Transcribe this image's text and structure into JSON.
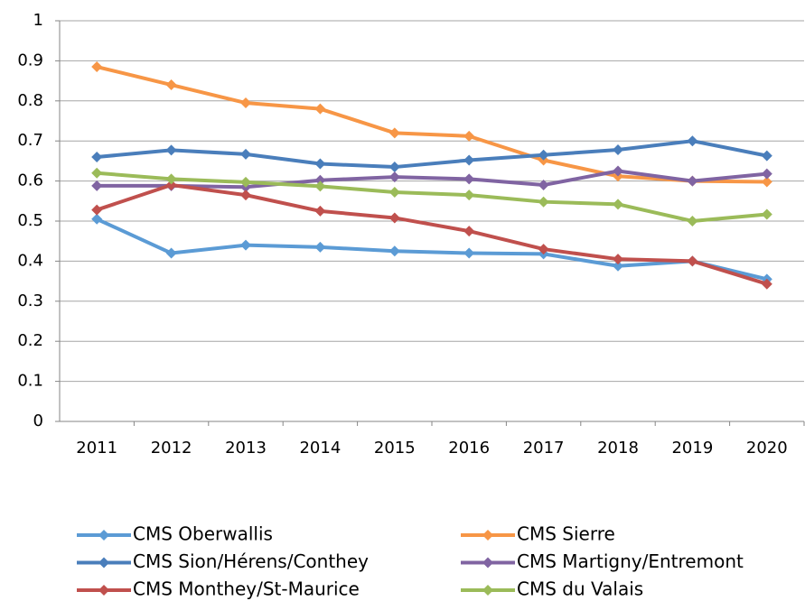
{
  "chart_data": {
    "type": "line",
    "categories": [
      "2011",
      "2012",
      "2013",
      "2014",
      "2015",
      "2016",
      "2017",
      "2018",
      "2019",
      "2020"
    ],
    "series": [
      {
        "name": "CMS Oberwallis",
        "color": "#5b9bd5",
        "values": [
          0.505,
          0.42,
          0.44,
          0.435,
          0.425,
          0.42,
          0.418,
          0.388,
          0.4,
          0.355
        ]
      },
      {
        "name": "CMS Sierre",
        "color": "#f79646",
        "values": [
          0.885,
          0.84,
          0.795,
          0.78,
          0.72,
          0.712,
          0.652,
          0.612,
          0.6,
          0.598
        ]
      },
      {
        "name": "CMS Sion/Hérens/Conthey",
        "color": "#4a7ebb",
        "values": [
          0.66,
          0.677,
          0.667,
          0.643,
          0.635,
          0.652,
          0.665,
          0.678,
          0.7,
          0.663
        ]
      },
      {
        "name": "CMS Martigny/Entremont",
        "color": "#8064a2",
        "values": [
          0.588,
          0.588,
          0.585,
          0.602,
          0.61,
          0.605,
          0.59,
          0.625,
          0.6,
          0.618
        ]
      },
      {
        "name": "CMS Monthey/St-Maurice",
        "color": "#c0504d",
        "values": [
          0.528,
          0.59,
          0.565,
          0.525,
          0.508,
          0.475,
          0.43,
          0.405,
          0.4,
          0.343
        ]
      },
      {
        "name": "CMS du Valais",
        "color": "#9bbb59",
        "values": [
          0.62,
          0.605,
          0.597,
          0.587,
          0.572,
          0.565,
          0.548,
          0.542,
          0.5,
          0.517
        ]
      }
    ],
    "ylim": [
      0,
      1
    ],
    "yticks": [
      0,
      0.1,
      0.2,
      0.3,
      0.4,
      0.5,
      0.6,
      0.7,
      0.8,
      0.9,
      1
    ],
    "grid": true
  }
}
